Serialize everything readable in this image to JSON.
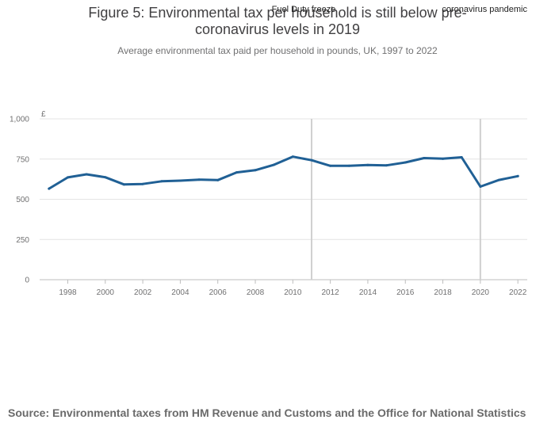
{
  "chart_data": {
    "type": "line",
    "title": "Figure 5: Environmental tax per household is still below pre-coronavirus levels in 2019",
    "subtitle": "Average environmental tax paid per household in pounds, UK, 1997 to 2022",
    "ylabel": "£",
    "xlabel": "",
    "ylim": [
      0,
      1000
    ],
    "xlim": [
      1996.5,
      2022.5
    ],
    "yticks": [
      0,
      250,
      500,
      750,
      1000
    ],
    "ytick_labels": [
      "0",
      "250",
      "500",
      "750",
      "1,000"
    ],
    "xticks": [
      1998,
      2000,
      2002,
      2004,
      2006,
      2008,
      2010,
      2012,
      2014,
      2016,
      2018,
      2020,
      2022
    ],
    "xtick_labels": [
      "1998",
      "2000",
      "2002",
      "2004",
      "2006",
      "2008",
      "2010",
      "2012",
      "2014",
      "2016",
      "2018",
      "2020",
      "2022"
    ],
    "series": [
      {
        "name": "Environmental tax per household",
        "color": "#206095",
        "x": [
          1997,
          1998,
          1999,
          2000,
          2001,
          2002,
          2003,
          2004,
          2005,
          2006,
          2007,
          2008,
          2009,
          2010,
          2011,
          2012,
          2013,
          2014,
          2015,
          2016,
          2017,
          2018,
          2019,
          2020,
          2021,
          2022
        ],
        "values": [
          566,
          636,
          655,
          637,
          592,
          595,
          612,
          616,
          622,
          619,
          667,
          681,
          715,
          765,
          743,
          708,
          708,
          713,
          711,
          729,
          756,
          752,
          761,
          579,
          620,
          644
        ]
      }
    ],
    "annotations": [
      {
        "x": 2011,
        "label": "Fuel Duty freeze"
      },
      {
        "x": 2020,
        "label": "coronavirus pandemic"
      }
    ],
    "grid": true,
    "gridline_color": "#e4e4e4",
    "annotation_line_color": "#d0d0d0"
  },
  "source": "Source: Environmental taxes from HM Revenue and Customs and the Office for National Statistics"
}
